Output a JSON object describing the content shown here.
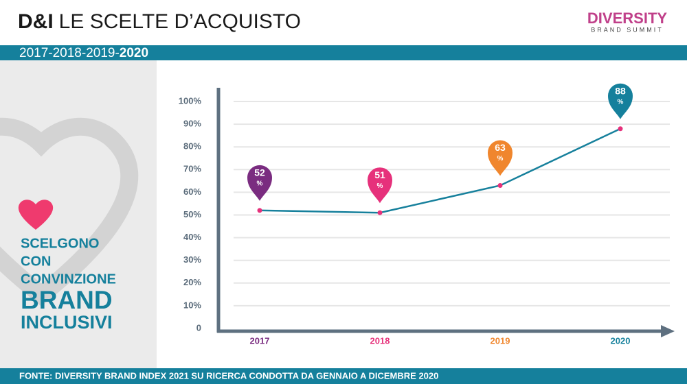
{
  "header": {
    "title_bold": "D&I",
    "title": "LE SCELTE D’ACQUISTO",
    "years": "2017-2018-2019-",
    "years_bold": "2020"
  },
  "logo": {
    "name": "DIVERSITY",
    "tagline": "BRAND SUMMIT"
  },
  "sidebar": {
    "lines": [
      "SCELGONO",
      "CON",
      "CONVINZIONE",
      "BRAND",
      "INCLUSIVI"
    ]
  },
  "footer": {
    "text": "FONTE: DIVERSITY BRAND INDEX 2021 SU RICERCA CONDOTTA DA GENNAIO A DICEMBRE 2020"
  },
  "chart_data": {
    "type": "line",
    "categories": [
      "2017",
      "2018",
      "2019",
      "2020"
    ],
    "category_colors": [
      "#7a2c80",
      "#e6317b",
      "#f0862d",
      "#15809c"
    ],
    "series": [
      {
        "color": "#16809c",
        "values": [
          52,
          51,
          63,
          88
        ]
      }
    ],
    "marker_color": "#e6317b",
    "value_label_unit": "%",
    "ylim": [
      0,
      100
    ],
    "yticks": [
      0,
      {
        "value": 10,
        "label": "10%"
      },
      {
        "value": 20,
        "label": "20%"
      },
      {
        "value": 30,
        "label": "30%"
      },
      {
        "value": 40,
        "label": "40%"
      },
      {
        "value": 50,
        "label": "50%"
      },
      {
        "value": 60,
        "label": "60%"
      },
      {
        "value": 70,
        "label": "70%"
      },
      {
        "value": 80,
        "label": "80%"
      },
      {
        "value": 90,
        "label": "90%"
      },
      {
        "value": 100,
        "label": "100%"
      }
    ],
    "grid": true
  }
}
